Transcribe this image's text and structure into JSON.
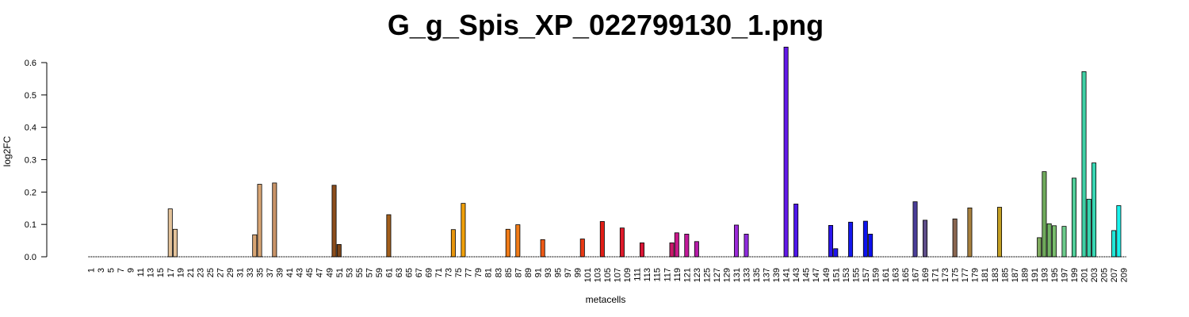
{
  "chart_data": {
    "type": "bar",
    "title": "G_g_Spis_XP_022799130_1.png",
    "xlabel": "metacells",
    "ylabel": "log2FC",
    "ylim": [
      0,
      0.65
    ],
    "yticks": [
      "0.0",
      "0.1",
      "0.2",
      "0.3",
      "0.4",
      "0.5",
      "0.6"
    ],
    "categories": [
      "1",
      "2",
      "3",
      "4",
      "5",
      "6",
      "7",
      "8",
      "9",
      "10",
      "11",
      "12",
      "13",
      "14",
      "15",
      "16",
      "17",
      "18",
      "19",
      "20",
      "21",
      "22",
      "23",
      "24",
      "25",
      "26",
      "27",
      "28",
      "29",
      "30",
      "31",
      "32",
      "33",
      "34",
      "35",
      "36",
      "37",
      "38",
      "39",
      "40",
      "41",
      "42",
      "43",
      "44",
      "45",
      "46",
      "47",
      "48",
      "49",
      "50",
      "51",
      "52",
      "53",
      "54",
      "55",
      "56",
      "57",
      "58",
      "59",
      "60",
      "61",
      "62",
      "63",
      "64",
      "65",
      "66",
      "67",
      "68",
      "69",
      "70",
      "71",
      "72",
      "73",
      "74",
      "75",
      "76",
      "77",
      "78",
      "79",
      "80",
      "81",
      "82",
      "83",
      "84",
      "85",
      "86",
      "87",
      "88",
      "89",
      "90",
      "91",
      "92",
      "93",
      "94",
      "95",
      "96",
      "97",
      "98",
      "99",
      "100",
      "101",
      "102",
      "103",
      "104",
      "105",
      "106",
      "107",
      "108",
      "109",
      "110",
      "111",
      "112",
      "113",
      "114",
      "115",
      "116",
      "117",
      "118",
      "119",
      "120",
      "121",
      "122",
      "123",
      "124",
      "125",
      "126",
      "127",
      "128",
      "129",
      "130",
      "131",
      "132",
      "133",
      "134",
      "135",
      "136",
      "137",
      "138",
      "139",
      "140",
      "141",
      "142",
      "143",
      "144",
      "145",
      "146",
      "147",
      "148",
      "149",
      "150",
      "151",
      "152",
      "153",
      "154",
      "155",
      "156",
      "157",
      "158",
      "159",
      "160",
      "161",
      "162",
      "163",
      "164",
      "165",
      "166",
      "167",
      "168",
      "169",
      "170",
      "171",
      "172",
      "173",
      "174",
      "175",
      "176",
      "177",
      "178",
      "179",
      "180",
      "181",
      "182",
      "183",
      "184",
      "185",
      "186",
      "187",
      "188",
      "189",
      "190",
      "191",
      "192",
      "193",
      "194",
      "195",
      "196",
      "197",
      "198",
      "199",
      "200",
      "201",
      "202",
      "203",
      "204",
      "205",
      "206",
      "207",
      "208",
      "209"
    ],
    "bars": [
      {
        "x": 17,
        "value": 0.148,
        "color": "#e3c29a"
      },
      {
        "x": 18,
        "value": 0.085,
        "color": "#e3c29a"
      },
      {
        "x": 34,
        "value": 0.068,
        "color": "#d8a574"
      },
      {
        "x": 35,
        "value": 0.224,
        "color": "#d8a574"
      },
      {
        "x": 38,
        "value": 0.228,
        "color": "#c99468"
      },
      {
        "x": 50,
        "value": 0.221,
        "color": "#8b4d1c"
      },
      {
        "x": 51,
        "value": 0.038,
        "color": "#7a4418"
      },
      {
        "x": 61,
        "value": 0.13,
        "color": "#a25f1c"
      },
      {
        "x": 74,
        "value": 0.084,
        "color": "#e8960d"
      },
      {
        "x": 76,
        "value": 0.165,
        "color": "#ef9f0a"
      },
      {
        "x": 85,
        "value": 0.085,
        "color": "#f07b17"
      },
      {
        "x": 87,
        "value": 0.099,
        "color": "#f07b17"
      },
      {
        "x": 92,
        "value": 0.053,
        "color": "#ee5a16"
      },
      {
        "x": 100,
        "value": 0.055,
        "color": "#e83a15"
      },
      {
        "x": 104,
        "value": 0.109,
        "color": "#e01d16"
      },
      {
        "x": 108,
        "value": 0.089,
        "color": "#de1a2a"
      },
      {
        "x": 112,
        "value": 0.043,
        "color": "#d91535"
      },
      {
        "x": 118,
        "value": 0.043,
        "color": "#c9186a"
      },
      {
        "x": 119,
        "value": 0.074,
        "color": "#c9188a"
      },
      {
        "x": 121,
        "value": 0.07,
        "color": "#c21a9a"
      },
      {
        "x": 123,
        "value": 0.047,
        "color": "#b51ca8"
      },
      {
        "x": 131,
        "value": 0.098,
        "color": "#9b2bd8"
      },
      {
        "x": 133,
        "value": 0.07,
        "color": "#8e2bdd"
      },
      {
        "x": 141,
        "value": 0.648,
        "color": "#6218e8"
      },
      {
        "x": 143,
        "value": 0.163,
        "color": "#4d17ea"
      },
      {
        "x": 150,
        "value": 0.097,
        "color": "#2b16ee"
      },
      {
        "x": 151,
        "value": 0.025,
        "color": "#2016ee"
      },
      {
        "x": 154,
        "value": 0.107,
        "color": "#1418ee"
      },
      {
        "x": 157,
        "value": 0.11,
        "color": "#0d14ee"
      },
      {
        "x": 158,
        "value": 0.07,
        "color": "#0d10ee"
      },
      {
        "x": 167,
        "value": 0.17,
        "color": "#4a3d98"
      },
      {
        "x": 169,
        "value": 0.113,
        "color": "#5e4d88"
      },
      {
        "x": 175,
        "value": 0.117,
        "color": "#8a6650"
      },
      {
        "x": 178,
        "value": 0.151,
        "color": "#a8803e"
      },
      {
        "x": 184,
        "value": 0.153,
        "color": "#c4a025"
      },
      {
        "x": 192,
        "value": 0.059,
        "color": "#7faa5e"
      },
      {
        "x": 193,
        "value": 0.263,
        "color": "#6faa5c"
      },
      {
        "x": 194,
        "value": 0.102,
        "color": "#72b464"
      },
      {
        "x": 195,
        "value": 0.096,
        "color": "#7abd6e"
      },
      {
        "x": 197,
        "value": 0.094,
        "color": "#6ccb8b"
      },
      {
        "x": 199,
        "value": 0.243,
        "color": "#52cf9a"
      },
      {
        "x": 201,
        "value": 0.572,
        "color": "#3fd0a5"
      },
      {
        "x": 202,
        "value": 0.178,
        "color": "#39d2ac"
      },
      {
        "x": 203,
        "value": 0.29,
        "color": "#39d6b3"
      },
      {
        "x": 207,
        "value": 0.081,
        "color": "#24e7d8"
      },
      {
        "x": 208,
        "value": 0.158,
        "color": "#1af2ec"
      }
    ]
  }
}
